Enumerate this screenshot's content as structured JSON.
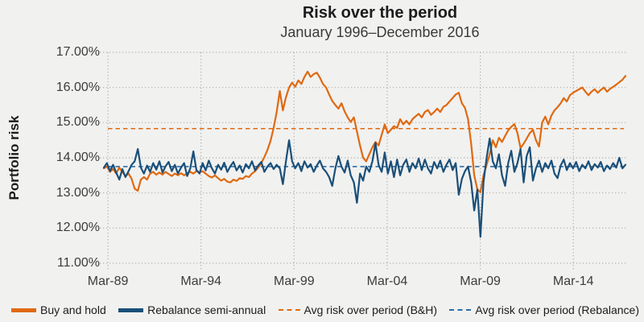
{
  "page": {
    "background": "#f1f1f0"
  },
  "chart_data": {
    "type": "line",
    "title": "Risk over the period",
    "subtitle": "January 1996–December 2016",
    "ylabel": "Portfolio risk",
    "xlabel": "",
    "grid": "dotted",
    "legend_position": "bottom",
    "ylim": [
      11,
      17
    ],
    "x_range_years": [
      1988.95,
      2016.97
    ],
    "y_ticks": [
      {
        "value": 17,
        "label": "17.00%"
      },
      {
        "value": 16,
        "label": "16.00%"
      },
      {
        "value": 15,
        "label": "15.00%"
      },
      {
        "value": 14,
        "label": "14.00%"
      },
      {
        "value": 13,
        "label": "13.00%"
      },
      {
        "value": 12,
        "label": "12.00%"
      },
      {
        "value": 11,
        "label": "11.00%"
      }
    ],
    "x_ticks": [
      {
        "year": 1989.17,
        "label": "Mar-89"
      },
      {
        "year": 1994.17,
        "label": "Mar-94"
      },
      {
        "year": 1999.17,
        "label": "Mar-99"
      },
      {
        "year": 2004.17,
        "label": "Mar-04"
      },
      {
        "year": 2009.17,
        "label": "Mar-09"
      },
      {
        "year": 2014.17,
        "label": "Mar-14"
      }
    ],
    "series": [
      {
        "name": "Buy and hold",
        "color": "#e0690f",
        "style": "solid",
        "values": [
          13.7,
          13.75,
          13.6,
          13.68,
          13.55,
          13.72,
          13.6,
          13.48,
          13.55,
          13.4,
          13.12,
          13.06,
          13.38,
          13.45,
          13.38,
          13.55,
          13.6,
          13.52,
          13.58,
          13.52,
          13.6,
          13.54,
          13.48,
          13.55,
          13.5,
          13.56,
          13.5,
          13.56,
          13.6,
          13.55,
          13.62,
          13.58,
          13.62,
          13.55,
          13.48,
          13.44,
          13.5,
          13.42,
          13.35,
          13.4,
          13.32,
          13.3,
          13.38,
          13.34,
          13.42,
          13.4,
          13.48,
          13.45,
          13.55,
          13.62,
          13.72,
          13.85,
          14.02,
          14.22,
          14.48,
          14.85,
          15.3,
          15.9,
          15.35,
          15.72,
          16.0,
          16.14,
          16.02,
          16.2,
          16.1,
          16.3,
          16.45,
          16.3,
          16.38,
          16.42,
          16.28,
          16.1,
          16.0,
          15.8,
          15.62,
          15.5,
          15.4,
          15.55,
          15.32,
          15.15,
          15.02,
          15.15,
          14.75,
          14.35,
          14.0,
          13.9,
          14.1,
          14.3,
          14.45,
          14.35,
          14.65,
          14.95,
          14.7,
          14.8,
          14.9,
          14.85,
          15.1,
          14.95,
          15.05,
          14.95,
          15.1,
          15.18,
          15.25,
          15.15,
          15.3,
          15.36,
          15.22,
          15.3,
          15.4,
          15.3,
          15.45,
          15.5,
          15.6,
          15.7,
          15.8,
          15.85,
          15.55,
          15.42,
          15.1,
          14.4,
          13.5,
          13.1,
          13.02,
          13.5,
          13.8,
          14.1,
          14.5,
          14.3,
          14.57,
          14.45,
          14.62,
          14.78,
          14.88,
          14.96,
          14.7,
          14.28,
          14.4,
          14.55,
          14.7,
          14.8,
          14.5,
          14.32,
          15.0,
          15.17,
          14.95,
          15.2,
          15.35,
          15.44,
          15.55,
          15.7,
          15.6,
          15.78,
          15.85,
          15.9,
          15.95,
          16.0,
          15.88,
          15.78,
          15.88,
          15.95,
          15.85,
          15.93,
          16.0,
          15.88,
          15.96,
          16.02,
          16.08,
          16.15,
          16.22,
          16.33
        ]
      },
      {
        "name": "Rebalance semi-annual",
        "color": "#1a4f78",
        "style": "solid",
        "values": [
          13.72,
          13.85,
          13.62,
          13.8,
          13.58,
          13.38,
          13.68,
          13.45,
          13.62,
          13.8,
          13.9,
          14.25,
          13.72,
          13.55,
          13.78,
          13.6,
          13.85,
          13.66,
          13.9,
          13.58,
          13.76,
          13.88,
          13.62,
          13.8,
          13.55,
          13.72,
          13.85,
          13.48,
          13.7,
          14.18,
          13.65,
          13.55,
          13.85,
          13.64,
          13.92,
          13.7,
          13.55,
          13.8,
          13.66,
          13.86,
          13.6,
          13.76,
          13.88,
          13.64,
          13.78,
          13.58,
          13.82,
          13.7,
          13.9,
          13.64,
          13.78,
          13.88,
          13.6,
          13.75,
          13.85,
          13.68,
          13.8,
          13.7,
          13.25,
          13.9,
          14.5,
          13.9,
          13.7,
          13.85,
          13.62,
          13.9,
          13.72,
          13.82,
          13.6,
          13.78,
          13.92,
          13.7,
          13.6,
          13.45,
          13.2,
          13.7,
          14.05,
          13.75,
          13.58,
          13.92,
          13.5,
          13.3,
          12.72,
          13.55,
          13.35,
          13.75,
          13.6,
          13.9,
          14.42,
          13.8,
          13.6,
          14.15,
          13.55,
          13.9,
          13.45,
          13.95,
          13.5,
          13.8,
          13.95,
          13.6,
          13.85,
          13.7,
          13.98,
          13.65,
          13.95,
          13.7,
          13.55,
          13.88,
          13.7,
          13.92,
          13.6,
          13.8,
          13.95,
          13.65,
          13.85,
          12.95,
          13.4,
          13.62,
          13.75,
          13.3,
          12.5,
          13.1,
          11.75,
          13.3,
          14.0,
          14.55,
          13.9,
          13.7,
          14.1,
          13.5,
          13.2,
          13.85,
          14.2,
          13.6,
          13.85,
          14.25,
          13.3,
          14.05,
          14.3,
          13.35,
          13.7,
          13.92,
          13.6,
          13.85,
          13.7,
          13.92,
          13.55,
          13.42,
          13.78,
          13.95,
          13.65,
          13.85,
          13.7,
          13.88,
          13.62,
          13.8,
          13.7,
          13.9,
          13.65,
          13.82,
          13.72,
          13.88,
          13.62,
          13.78,
          13.68,
          13.85,
          13.72,
          14.0,
          13.7,
          13.8
        ]
      },
      {
        "name": "Avg risk over period (B&H)",
        "color": "#e0690f",
        "style": "dashed",
        "avg_value": 14.83
      },
      {
        "name": "Avg risk over period (Rebalance)",
        "color": "#2e6da4",
        "style": "dashed",
        "avg_value": 13.75
      }
    ]
  }
}
